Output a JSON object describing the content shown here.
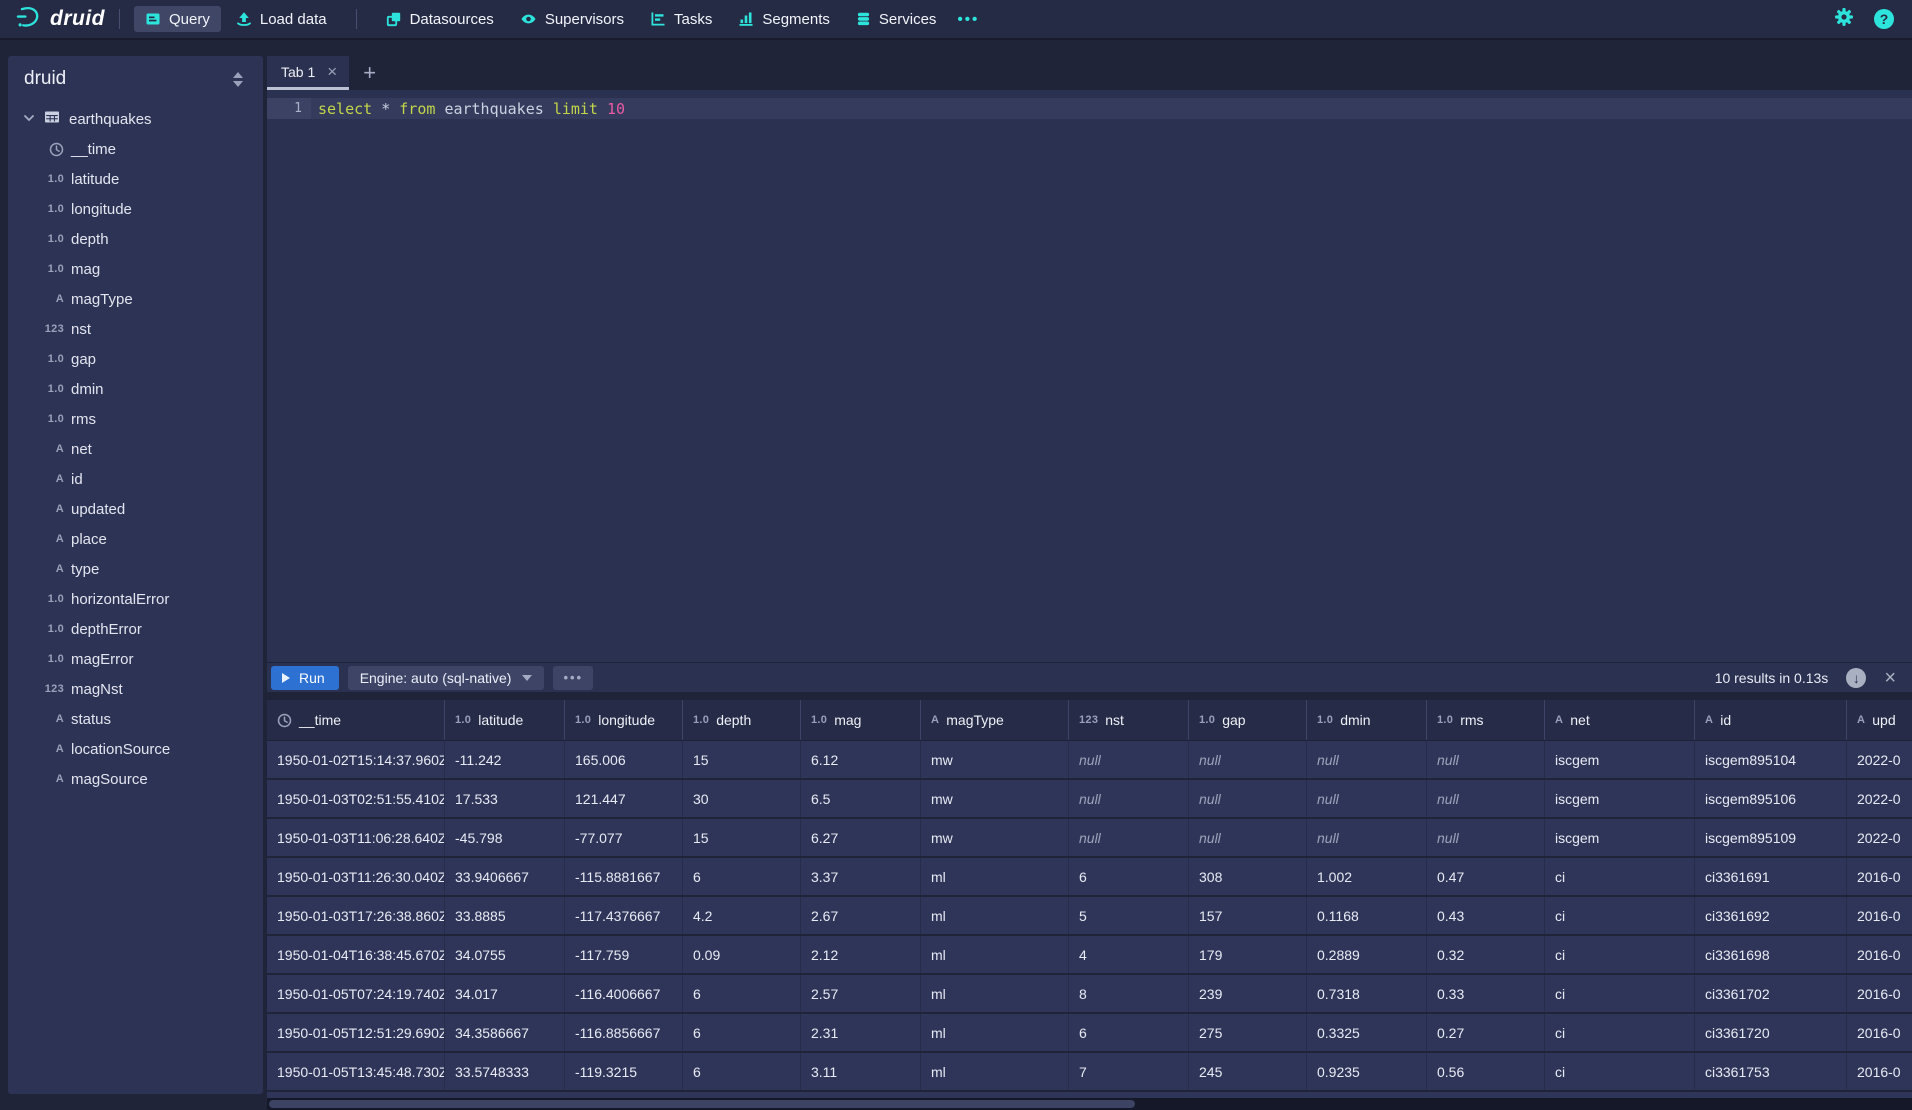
{
  "colors": {
    "accent_cyan": "#2ce4dc",
    "run_button_blue": "#2d72d2",
    "sql_keyword": "#c3d64a",
    "sql_number": "#ea5aa5"
  },
  "navbar": {
    "brand": "druid",
    "items": [
      {
        "label": "Query",
        "icon": "console-icon",
        "active": true
      },
      {
        "label": "Load data",
        "icon": "upload-icon",
        "active": false
      },
      {
        "label": "Datasources",
        "icon": "datasources-icon",
        "active": false
      },
      {
        "label": "Supervisors",
        "icon": "eye-icon",
        "active": false
      },
      {
        "label": "Tasks",
        "icon": "gantt-icon",
        "active": false
      },
      {
        "label": "Segments",
        "icon": "bar-chart-icon",
        "active": false
      },
      {
        "label": "Services",
        "icon": "database-icon",
        "active": false
      }
    ],
    "more": "•••"
  },
  "sidebar": {
    "title": "druid",
    "datasource": "earthquakes",
    "columns": [
      {
        "name": "__time",
        "type": "time"
      },
      {
        "name": "latitude",
        "type": "float"
      },
      {
        "name": "longitude",
        "type": "float"
      },
      {
        "name": "depth",
        "type": "float"
      },
      {
        "name": "mag",
        "type": "float"
      },
      {
        "name": "magType",
        "type": "string"
      },
      {
        "name": "nst",
        "type": "long"
      },
      {
        "name": "gap",
        "type": "float"
      },
      {
        "name": "dmin",
        "type": "float"
      },
      {
        "name": "rms",
        "type": "float"
      },
      {
        "name": "net",
        "type": "string"
      },
      {
        "name": "id",
        "type": "string"
      },
      {
        "name": "updated",
        "type": "string"
      },
      {
        "name": "place",
        "type": "string"
      },
      {
        "name": "type",
        "type": "string"
      },
      {
        "name": "horizontalError",
        "type": "float"
      },
      {
        "name": "depthError",
        "type": "float"
      },
      {
        "name": "magError",
        "type": "float"
      },
      {
        "name": "magNst",
        "type": "long"
      },
      {
        "name": "status",
        "type": "string"
      },
      {
        "name": "locationSource",
        "type": "string"
      },
      {
        "name": "magSource",
        "type": "string"
      }
    ]
  },
  "tabs": {
    "items": [
      {
        "label": "Tab 1"
      }
    ],
    "add_label": "+"
  },
  "editor": {
    "line_number": "1",
    "tokens": [
      {
        "text": "select",
        "type": "keyword"
      },
      {
        "text": " ",
        "type": "plain"
      },
      {
        "text": "*",
        "type": "operator"
      },
      {
        "text": " ",
        "type": "plain"
      },
      {
        "text": "from",
        "type": "keyword"
      },
      {
        "text": " ",
        "type": "plain"
      },
      {
        "text": "earthquakes",
        "type": "identifier"
      },
      {
        "text": " ",
        "type": "plain"
      },
      {
        "text": "limit",
        "type": "keyword"
      },
      {
        "text": " ",
        "type": "plain"
      },
      {
        "text": "10",
        "type": "number"
      }
    ]
  },
  "runbar": {
    "run_label": "Run",
    "engine_label": "Engine: auto (sql-native)",
    "more_label": "•••",
    "status": "10 results in 0.13s"
  },
  "results": {
    "columns": [
      {
        "label": "__time",
        "type": "time"
      },
      {
        "label": "latitude",
        "type": "float"
      },
      {
        "label": "longitude",
        "type": "float"
      },
      {
        "label": "depth",
        "type": "float"
      },
      {
        "label": "mag",
        "type": "float"
      },
      {
        "label": "magType",
        "type": "string"
      },
      {
        "label": "nst",
        "type": "long"
      },
      {
        "label": "gap",
        "type": "float"
      },
      {
        "label": "dmin",
        "type": "float"
      },
      {
        "label": "rms",
        "type": "float"
      },
      {
        "label": "net",
        "type": "string"
      },
      {
        "label": "id",
        "type": "string"
      },
      {
        "label": "upd",
        "type": "string"
      }
    ],
    "null_display": "null",
    "rows": [
      [
        "1950-01-02T15:14:37.960Z",
        "-11.242",
        "165.006",
        "15",
        "6.12",
        "mw",
        "null",
        "null",
        "null",
        "null",
        "iscgem",
        "iscgem895104",
        "2022-0"
      ],
      [
        "1950-01-03T02:51:55.410Z",
        "17.533",
        "121.447",
        "30",
        "6.5",
        "mw",
        "null",
        "null",
        "null",
        "null",
        "iscgem",
        "iscgem895106",
        "2022-0"
      ],
      [
        "1950-01-03T11:06:28.640Z",
        "-45.798",
        "-77.077",
        "15",
        "6.27",
        "mw",
        "null",
        "null",
        "null",
        "null",
        "iscgem",
        "iscgem895109",
        "2022-0"
      ],
      [
        "1950-01-03T11:26:30.040Z",
        "33.9406667",
        "-115.8881667",
        "6",
        "3.37",
        "ml",
        "6",
        "308",
        "1.002",
        "0.47",
        "ci",
        "ci3361691",
        "2016-0"
      ],
      [
        "1950-01-03T17:26:38.860Z",
        "33.8885",
        "-117.4376667",
        "4.2",
        "2.67",
        "ml",
        "5",
        "157",
        "0.1168",
        "0.43",
        "ci",
        "ci3361692",
        "2016-0"
      ],
      [
        "1950-01-04T16:38:45.670Z",
        "34.0755",
        "-117.759",
        "0.09",
        "2.12",
        "ml",
        "4",
        "179",
        "0.2889",
        "0.32",
        "ci",
        "ci3361698",
        "2016-0"
      ],
      [
        "1950-01-05T07:24:19.740Z",
        "34.017",
        "-116.4006667",
        "6",
        "2.57",
        "ml",
        "8",
        "239",
        "0.7318",
        "0.33",
        "ci",
        "ci3361702",
        "2016-0"
      ],
      [
        "1950-01-05T12:51:29.690Z",
        "34.3586667",
        "-116.8856667",
        "6",
        "2.31",
        "ml",
        "6",
        "275",
        "0.3325",
        "0.27",
        "ci",
        "ci3361720",
        "2016-0"
      ],
      [
        "1950-01-05T13:45:48.730Z",
        "33.5748333",
        "-119.3215",
        "6",
        "3.11",
        "ml",
        "7",
        "245",
        "0.9235",
        "0.56",
        "ci",
        "ci3361753",
        "2016-0"
      ]
    ]
  }
}
